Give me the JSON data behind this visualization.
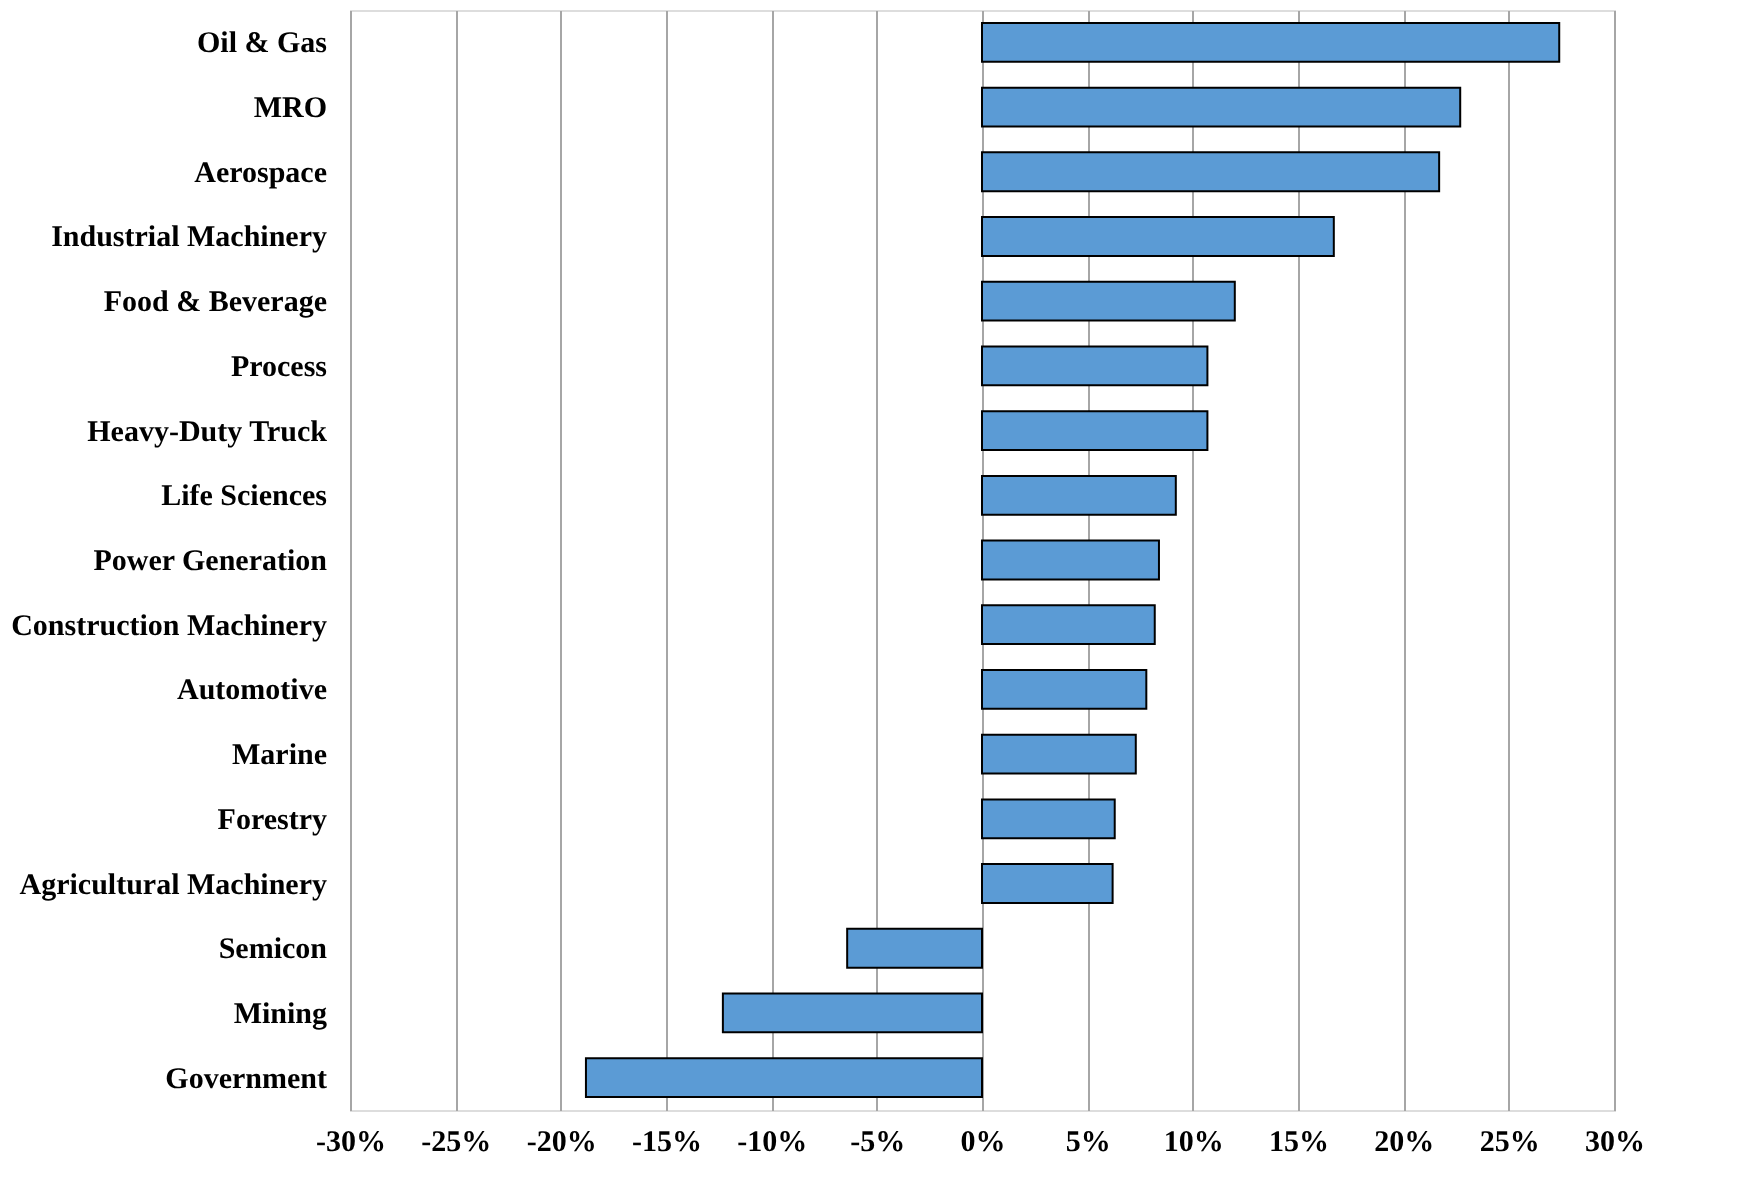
{
  "chart_data": {
    "type": "bar",
    "orientation": "horizontal",
    "categories": [
      "Oil & Gas",
      "MRO",
      "Aerospace",
      "Industrial Machinery",
      "Food & Beverage",
      "Process",
      "Heavy-Duty Truck",
      "Life Sciences",
      "Power Generation",
      "Construction Machinery",
      "Automotive",
      "Marine",
      "Forestry",
      "Agricultural Machinery",
      "Semicon",
      "Mining",
      "Government"
    ],
    "values": [
      27.4,
      22.7,
      21.7,
      16.7,
      12.0,
      10.7,
      10.7,
      9.2,
      8.4,
      8.2,
      7.8,
      7.3,
      6.3,
      6.2,
      -6.4,
      -12.3,
      -18.8
    ],
    "color": "#5b9bd5",
    "xlim": [
      -30,
      30
    ],
    "xticks": [
      {
        "value": -30,
        "label": "-30%"
      },
      {
        "value": -25,
        "label": "-25%"
      },
      {
        "value": -20,
        "label": "-20%"
      },
      {
        "value": -15,
        "label": "-15%"
      },
      {
        "value": -10,
        "label": "-10%"
      },
      {
        "value": -5,
        "label": "-5%"
      },
      {
        "value": 0,
        "label": "0%"
      },
      {
        "value": 5,
        "label": "5%"
      },
      {
        "value": 10,
        "label": "10%"
      },
      {
        "value": 15,
        "label": "15%"
      },
      {
        "value": 20,
        "label": "20%"
      },
      {
        "value": 25,
        "label": "25%"
      },
      {
        "value": 30,
        "label": "30%"
      }
    ],
    "grid": "x"
  }
}
